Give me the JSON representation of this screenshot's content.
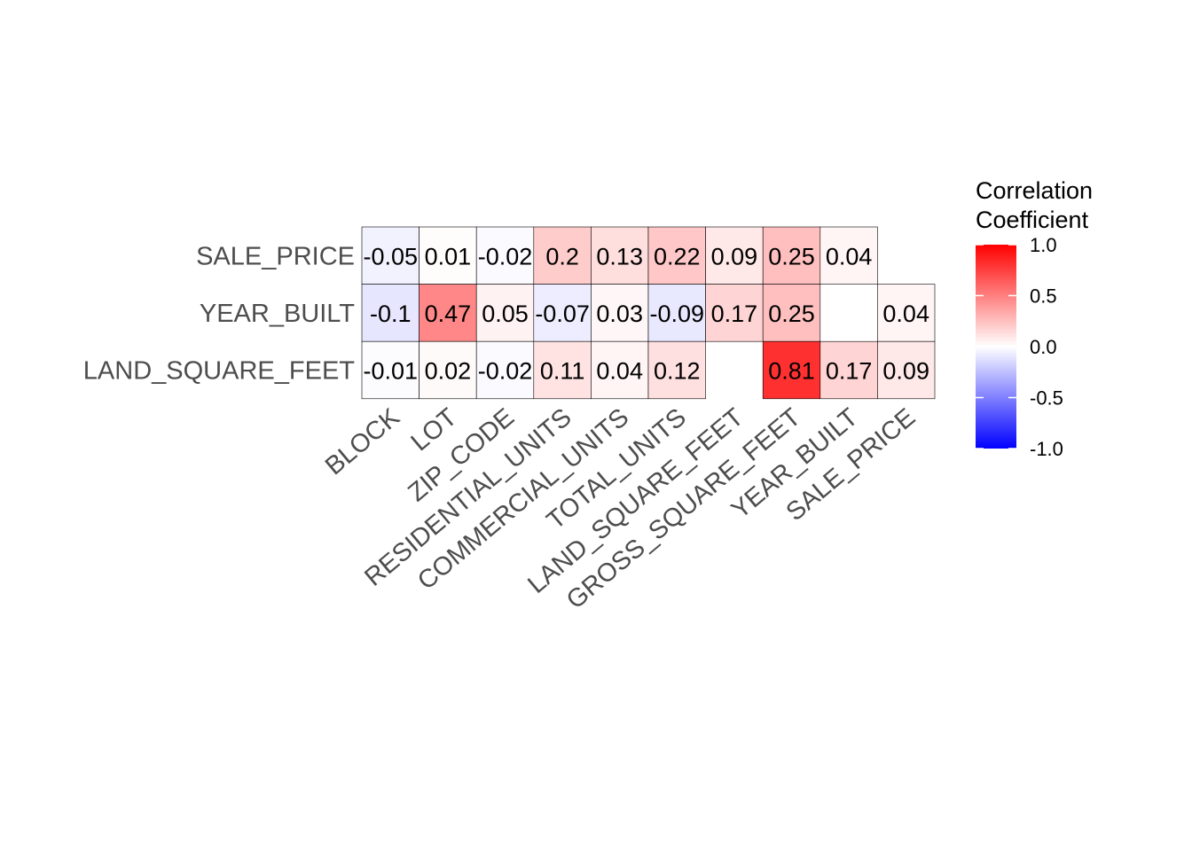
{
  "chart_data": {
    "type": "heatmap",
    "title": "",
    "xlabel": "",
    "ylabel": "",
    "x_categories": [
      "BLOCK",
      "LOT",
      "ZIP_CODE",
      "RESIDENTIAL_UNITS",
      "COMMERCIAL_UNITS",
      "TOTAL_UNITS",
      "LAND_SQUARE_FEET",
      "GROSS_SQUARE_FEET",
      "YEAR_BUILT",
      "SALE_PRICE"
    ],
    "y_categories": [
      "SALE_PRICE",
      "YEAR_BUILT",
      "LAND_SQUARE_FEET"
    ],
    "values": [
      [
        -0.05,
        0.01,
        -0.02,
        0.2,
        0.13,
        0.22,
        0.09,
        0.25,
        0.04,
        null
      ],
      [
        -0.1,
        0.47,
        0.05,
        -0.07,
        0.03,
        -0.09,
        0.17,
        0.25,
        null,
        0.04
      ],
      [
        -0.01,
        0.02,
        -0.02,
        0.11,
        0.04,
        0.12,
        null,
        0.81,
        0.17,
        0.09
      ]
    ],
    "labels": [
      [
        "-0.05",
        "0.01",
        "-0.02",
        "0.2",
        "0.13",
        "0.22",
        "0.09",
        "0.25",
        "0.04",
        null
      ],
      [
        "-0.1",
        "0.47",
        "0.05",
        "-0.07",
        "0.03",
        "-0.09",
        "0.17",
        "0.25",
        null,
        "0.04"
      ],
      [
        "-0.01",
        "0.02",
        "-0.02",
        "0.11",
        "0.04",
        "0.12",
        null,
        "0.81",
        "0.17",
        "0.09"
      ]
    ],
    "legend": {
      "title_lines": [
        "Correlation",
        "Coefficient"
      ],
      "range": [
        -1,
        1
      ],
      "ticks": [
        1.0,
        0.5,
        0.0,
        -0.5,
        -1.0
      ],
      "tick_labels": [
        "1.0",
        "0.5",
        "0.0",
        "-0.5",
        "-1.0"
      ],
      "placement": "right"
    },
    "colors": {
      "low": "#0000FF",
      "mid": "#FFFFFF",
      "high": "#FF0000"
    },
    "grid": false
  }
}
